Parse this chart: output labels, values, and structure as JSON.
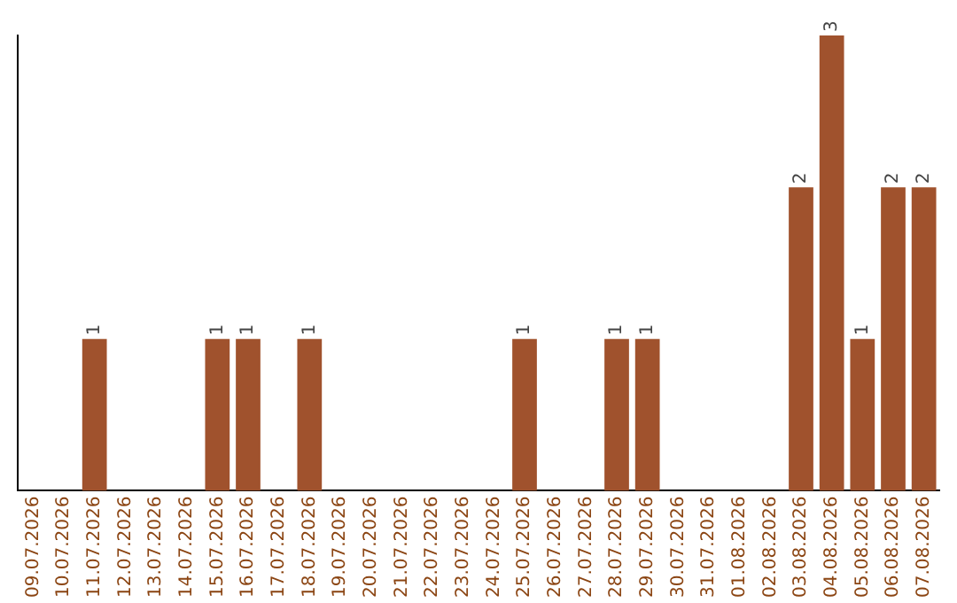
{
  "chart_data": {
    "type": "bar",
    "categories": [
      "09.07.2026",
      "10.07.2026",
      "11.07.2026",
      "12.07.2026",
      "13.07.2026",
      "14.07.2026",
      "15.07.2026",
      "16.07.2026",
      "17.07.2026",
      "18.07.2026",
      "19.07.2026",
      "20.07.2026",
      "21.07.2026",
      "22.07.2026",
      "23.07.2026",
      "24.07.2026",
      "25.07.2026",
      "26.07.2026",
      "27.07.2026",
      "28.07.2026",
      "29.07.2026",
      "30.07.2026",
      "31.07.2026",
      "01.08.2026",
      "02.08.2026",
      "03.08.2026",
      "04.08.2026",
      "05.08.2026",
      "06.08.2026",
      "07.08.2026"
    ],
    "values": [
      0,
      0,
      1,
      0,
      0,
      0,
      1,
      1,
      0,
      1,
      0,
      0,
      0,
      0,
      0,
      0,
      1,
      0,
      0,
      1,
      1,
      0,
      0,
      0,
      0,
      2,
      3,
      1,
      2,
      2
    ],
    "value_labels": [
      null,
      null,
      "1",
      null,
      null,
      null,
      "1",
      "1",
      null,
      "1",
      null,
      null,
      null,
      null,
      null,
      null,
      "1",
      null,
      null,
      "1",
      "1",
      null,
      null,
      null,
      null,
      "2",
      "3",
      "1",
      "2",
      "2"
    ],
    "color": "#a0522d",
    "ylim": [
      0,
      3
    ],
    "tick_labels": "x",
    "grid": false,
    "legend": false
  }
}
